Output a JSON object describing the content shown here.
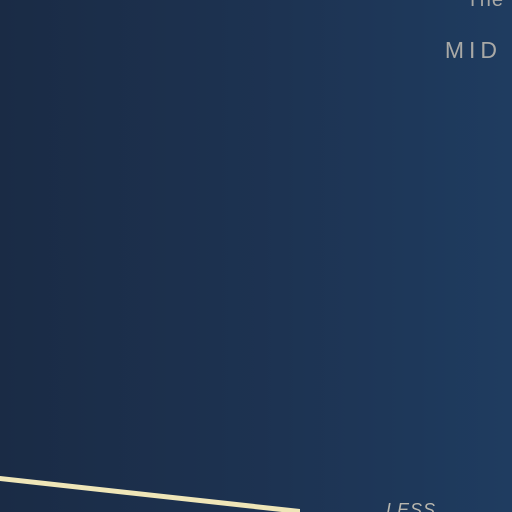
{
  "texts": {
    "top_word": "The",
    "mid_word": "MID",
    "bottom_word": "LESS"
  },
  "colors": {
    "background_left": "#1a2b45",
    "background_right": "#1f3c60",
    "text_gray": "#a9a9a6",
    "stripe_cream": "#efe6b8"
  }
}
